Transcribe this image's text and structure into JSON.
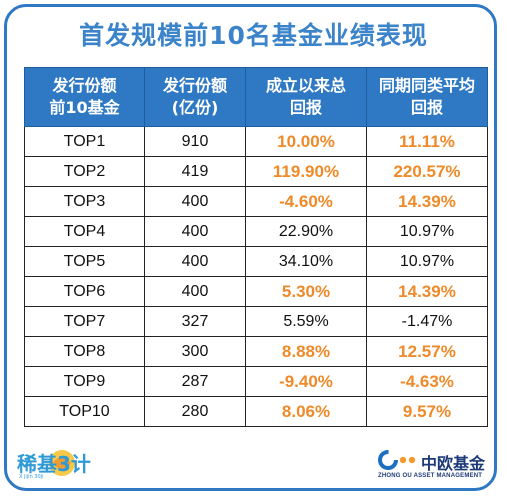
{
  "title": "首发规模前10名基金业绩表现",
  "headers": [
    "发行份额\n前10基金",
    "发行份额\n(亿份)",
    "成立以来总\n回报",
    "同期同类平均\n回报"
  ],
  "rows": [
    {
      "name": "TOP1",
      "shares": "910",
      "total_return": "10.00%",
      "peer_avg": "11.11%",
      "highlight": true
    },
    {
      "name": "TOP2",
      "shares": "419",
      "total_return": "119.90%",
      "peer_avg": "220.57%",
      "highlight": true
    },
    {
      "name": "TOP3",
      "shares": "400",
      "total_return": "-4.60%",
      "peer_avg": "14.39%",
      "highlight": true
    },
    {
      "name": "TOP4",
      "shares": "400",
      "total_return": "22.90%",
      "peer_avg": "10.97%",
      "highlight": false
    },
    {
      "name": "TOP5",
      "shares": "400",
      "total_return": "34.10%",
      "peer_avg": "10.97%",
      "highlight": false
    },
    {
      "name": "TOP6",
      "shares": "400",
      "total_return": "5.30%",
      "peer_avg": "14.39%",
      "highlight": true
    },
    {
      "name": "TOP7",
      "shares": "327",
      "total_return": "5.59%",
      "peer_avg": "-1.47%",
      "highlight": false
    },
    {
      "name": "TOP8",
      "shares": "300",
      "total_return": "8.88%",
      "peer_avg": "12.57%",
      "highlight": true
    },
    {
      "name": "TOP9",
      "shares": "287",
      "total_return": "-9.40%",
      "peer_avg": "-4.63%",
      "highlight": true
    },
    {
      "name": "TOP10",
      "shares": "280",
      "total_return": "8.06%",
      "peer_avg": "9.57%",
      "highlight": true
    }
  ],
  "colors": {
    "frame": "#2f79c4",
    "header_bg": "#2f79c4",
    "title": "#3c84c9",
    "highlight_text": "#ef8a2a"
  },
  "logos": {
    "left": {
      "text": "稀基3计",
      "sub": "X jijin 30ji"
    },
    "right": {
      "icon": "zhong-ou-logo-icon",
      "cn": "中欧基金",
      "en": "ZHONG OU ASSET MANAGEMENT"
    }
  }
}
